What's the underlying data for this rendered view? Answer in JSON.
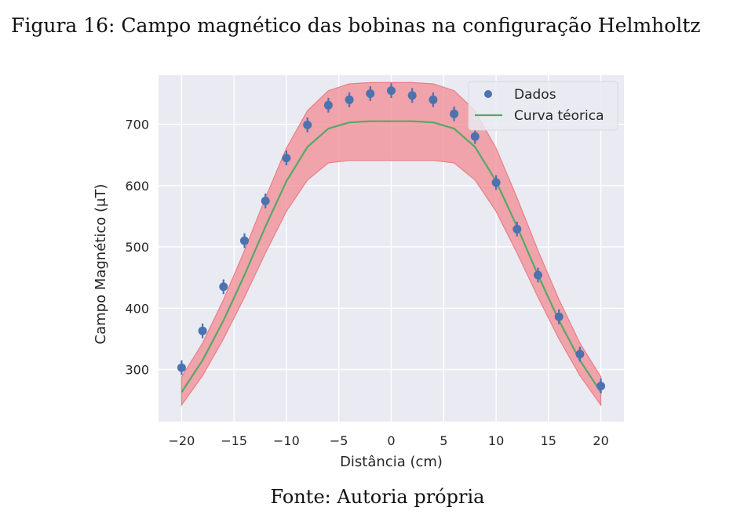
{
  "figure": {
    "caption": "Figura 16: Campo magnético das bobinas na configuração Helmholtz",
    "source": "Fonte: Autoria própria"
  },
  "chart_data": {
    "type": "scatter",
    "xlabel": "Distância (cm)",
    "ylabel": "Campo Magnético (μT)",
    "xlim": [
      -22.2,
      22.2
    ],
    "ylim": [
      215,
      780
    ],
    "xticks": [
      -20,
      -15,
      -10,
      -5,
      0,
      5,
      10,
      15,
      20
    ],
    "xtick_labels": [
      "−20",
      "−15",
      "−10",
      "−5",
      "0",
      "5",
      "10",
      "15",
      "20"
    ],
    "yticks": [
      300,
      400,
      500,
      600,
      700
    ],
    "ytick_labels": [
      "300",
      "400",
      "500",
      "600",
      "700"
    ],
    "grid": true,
    "legend_position": "top-right",
    "colors": {
      "background": "#eaeaf2",
      "grid": "#ffffff",
      "data": "#4c72b0",
      "theory": "#55a868",
      "band_fill": "#f28b92",
      "band_edge": "#e97f85"
    },
    "series": [
      {
        "name": "Dados",
        "kind": "points",
        "x": [
          -20,
          -18,
          -16,
          -14,
          -12,
          -10,
          -8,
          -6,
          -4,
          -2,
          0,
          2,
          4,
          6,
          8,
          10,
          12,
          14,
          16,
          18,
          20
        ],
        "y": [
          303,
          363,
          435,
          510,
          575,
          645,
          699,
          731,
          740,
          750,
          755,
          747,
          740,
          717,
          680,
          605,
          529,
          454,
          386,
          325,
          273
        ],
        "yerr": 12
      },
      {
        "name": "Curva téorica",
        "kind": "line",
        "x": [
          -20,
          -18,
          -16,
          -14,
          -12,
          -10,
          -8,
          -6,
          -4,
          -2,
          0,
          2,
          4,
          6,
          8,
          10,
          12,
          14,
          16,
          18,
          20
        ],
        "y": [
          263,
          315,
          380,
          454,
          533,
          607,
          663,
          693,
          703,
          705,
          705,
          705,
          703,
          693,
          663,
          607,
          533,
          454,
          380,
          315,
          263
        ]
      },
      {
        "kind": "band",
        "x": [
          -20,
          -18,
          -16,
          -14,
          -12,
          -10,
          -8,
          -6,
          -4,
          -2,
          0,
          2,
          4,
          6,
          8,
          10,
          12,
          14,
          16,
          18,
          20
        ],
        "upper": [
          288,
          343,
          414,
          494,
          580,
          661,
          722,
          755,
          766,
          768,
          768,
          768,
          766,
          755,
          722,
          661,
          580,
          494,
          414,
          343,
          288
        ],
        "lower": [
          242,
          290,
          350,
          418,
          490,
          558,
          609,
          637,
          641,
          641,
          641,
          641,
          641,
          637,
          609,
          558,
          490,
          418,
          350,
          290,
          242
        ]
      }
    ]
  }
}
